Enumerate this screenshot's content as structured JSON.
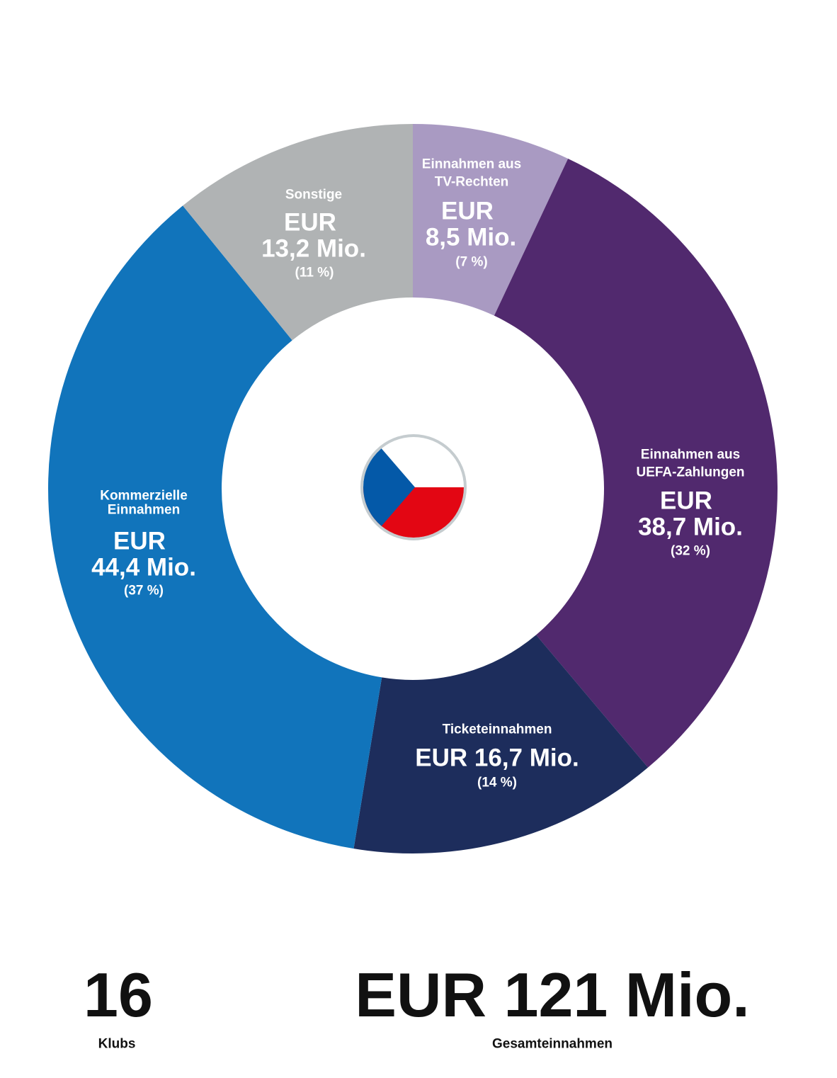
{
  "chart_data": {
    "type": "pie",
    "subtype": "donut",
    "unit": "EUR Mio.",
    "start": "top, clockwise",
    "segments": [
      {
        "name": "Einnahmen aus TV-Rechten",
        "name_lines": [
          "Einnahmen aus",
          "TV-Rechten"
        ],
        "value": 8.5,
        "value_label_lines": [
          "EUR",
          "8,5 Mio."
        ],
        "percent_label": "(7 %)",
        "color": "#a99ac2"
      },
      {
        "name": "Einnahmen aus UEFA-Zahlungen",
        "name_lines": [
          "Einnahmen aus",
          "UEFA-Zahlungen"
        ],
        "value": 38.7,
        "value_label_lines": [
          "EUR",
          "38,7 Mio."
        ],
        "percent_label": "(32 %)",
        "color": "#51296e"
      },
      {
        "name": "Ticketeinnahmen",
        "name_lines": [
          "Ticketeinnahmen"
        ],
        "value": 16.7,
        "value_label_lines": [
          "EUR 16,7 Mio."
        ],
        "percent_label": "(14 %)",
        "color": "#1d2d5c"
      },
      {
        "name": "Kommerzielle Einnahmen",
        "name_lines": [
          "Kommerzielle",
          "Einnahmen"
        ],
        "value": 44.4,
        "value_label_lines": [
          "EUR",
          "44,4 Mio."
        ],
        "percent_label": "(37 %)",
        "color": "#1174bb"
      },
      {
        "name": "Sonstige",
        "name_lines": [
          "Sonstige"
        ],
        "value": 13.2,
        "value_label_lines": [
          "EUR",
          "13,2 Mio."
        ],
        "percent_label": "(11 %)",
        "color": "#b0b3b4"
      }
    ],
    "center_icon": "czech-flag-icon",
    "flag_colors": {
      "white": "#ffffff",
      "red": "#e30613",
      "blue": "#0459a8",
      "ring": "#c5cccf"
    }
  },
  "summary": {
    "clubs_value": "16",
    "clubs_label": "Klubs",
    "total_value": "EUR 121 Mio.",
    "total_label": "Gesamteinnahmen"
  }
}
